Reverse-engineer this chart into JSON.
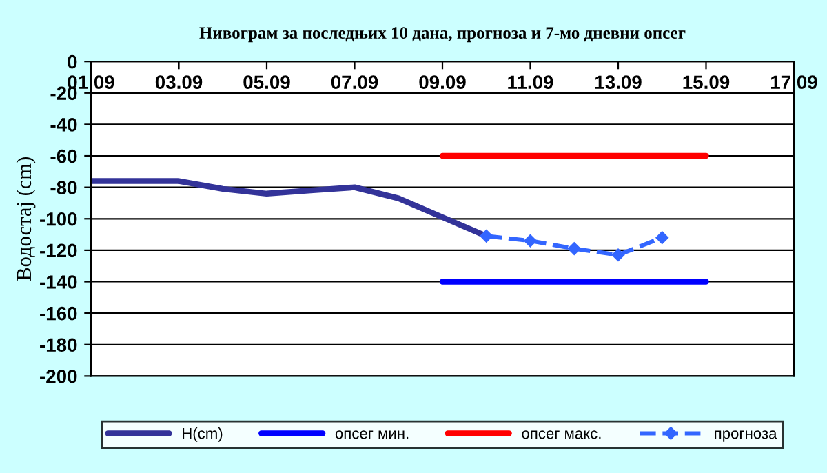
{
  "chart_data": {
    "type": "line",
    "title": "Нивограм за последњих 10 дана, прогноза и 7-мо дневни опсег",
    "ylabel": "Водостај (cm)",
    "xlim": [
      "--09-01",
      "--09-17"
    ],
    "xticks": [
      {
        "value": "--09-01",
        "label": "01.09"
      },
      {
        "value": "--09-03",
        "label": "03.09"
      },
      {
        "value": "--09-05",
        "label": "05.09"
      },
      {
        "value": "--09-07",
        "label": "07.09"
      },
      {
        "value": "--09-09",
        "label": "09.09"
      },
      {
        "value": "--09-11",
        "label": "11.09"
      },
      {
        "value": "--09-13",
        "label": "13.09"
      },
      {
        "value": "--09-15",
        "label": "15.09"
      },
      {
        "value": "--09-17",
        "label": "17.09"
      }
    ],
    "ylim": [
      -200,
      0
    ],
    "yticks": [
      0,
      -20,
      -40,
      -60,
      -80,
      -100,
      -120,
      -140,
      -160,
      -180,
      -200
    ],
    "series": [
      {
        "name": "H(cm)",
        "color": "#333399",
        "x": [
          "--09-01",
          "--09-02",
          "--09-03",
          "--09-04",
          "--09-05",
          "--09-06",
          "--09-07",
          "--09-08",
          "--09-09",
          "--09-10"
        ],
        "values": [
          -76,
          -76,
          -76,
          -81,
          -84,
          -82,
          -80,
          -87,
          -99,
          -111
        ],
        "marker": "none",
        "line_style": "solid"
      },
      {
        "name": "опсег мин.",
        "color": "#0000ff",
        "x": [
          "--09-09",
          "--09-15"
        ],
        "values": [
          -140,
          -140
        ],
        "marker": "none",
        "line_style": "solid"
      },
      {
        "name": "опсег макс.",
        "color": "#ff0000",
        "x": [
          "--09-09",
          "--09-15"
        ],
        "values": [
          -60,
          -60
        ],
        "marker": "none",
        "line_style": "solid"
      },
      {
        "name": "прогноза",
        "color": "#3366ff",
        "x": [
          "--09-10",
          "--09-11",
          "--09-12",
          "--09-13",
          "--09-14"
        ],
        "values": [
          -111,
          -114,
          -119,
          -123,
          -112
        ],
        "marker": "diamond",
        "line_style": "dashed"
      }
    ],
    "grid": "y",
    "legend": "bottom"
  }
}
